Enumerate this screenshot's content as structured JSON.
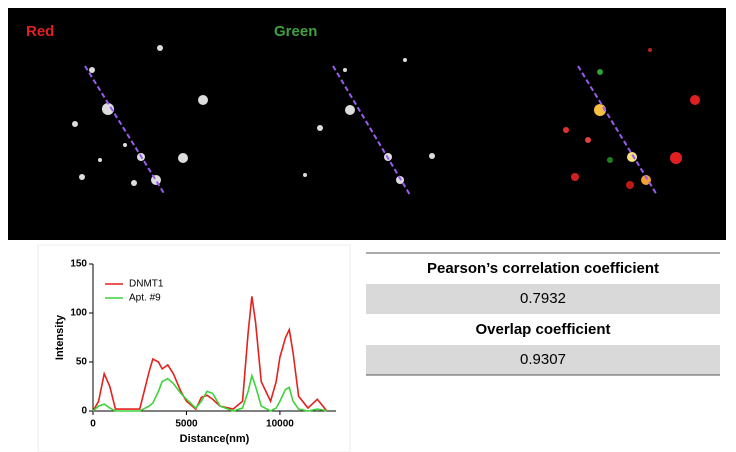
{
  "panels": {
    "labels": [
      "Red",
      "Green"
    ]
  },
  "chart_data": {
    "type": "line",
    "xlabel": "Distance(nm)",
    "ylabel": "Intensity",
    "x": [
      0,
      300,
      600,
      900,
      1200,
      2500,
      3000,
      3200,
      3500,
      3700,
      4000,
      4300,
      4700,
      5000,
      5500,
      5800,
      6100,
      6400,
      6800,
      7500,
      8000,
      8300,
      8500,
      8700,
      9000,
      9500,
      9800,
      10000,
      10300,
      10500,
      10700,
      11000,
      11500,
      12000,
      12300,
      12500
    ],
    "series": [
      {
        "name": "DNMT1",
        "color": "#e3221e",
        "values": [
          0,
          10,
          38,
          25,
          2,
          2,
          40,
          53,
          50,
          43,
          47,
          38,
          20,
          10,
          2,
          14,
          16,
          12,
          5,
          2,
          10,
          80,
          117,
          90,
          30,
          10,
          30,
          55,
          75,
          83,
          60,
          15,
          3,
          12,
          5,
          0
        ]
      },
      {
        "name": "Apt. #9",
        "color": "#3fd23a",
        "values": [
          0,
          5,
          7,
          3,
          0,
          0,
          5,
          8,
          20,
          30,
          33,
          28,
          18,
          12,
          3,
          10,
          20,
          18,
          5,
          0,
          3,
          20,
          36,
          25,
          5,
          0,
          3,
          10,
          22,
          24,
          10,
          2,
          0,
          2,
          1,
          0
        ]
      }
    ],
    "xlim": [
      0,
      13000
    ],
    "ylim": [
      0,
      150
    ],
    "xticks": [
      0,
      5000,
      10000
    ],
    "yticks": [
      0,
      50,
      100,
      150
    ],
    "legend": "upper left"
  },
  "table": {
    "rows": [
      [
        "Pearson’s correlation coefficient"
      ],
      [
        "0.7932"
      ],
      [
        "Overlap coefficient"
      ],
      [
        "0.9307"
      ]
    ]
  }
}
